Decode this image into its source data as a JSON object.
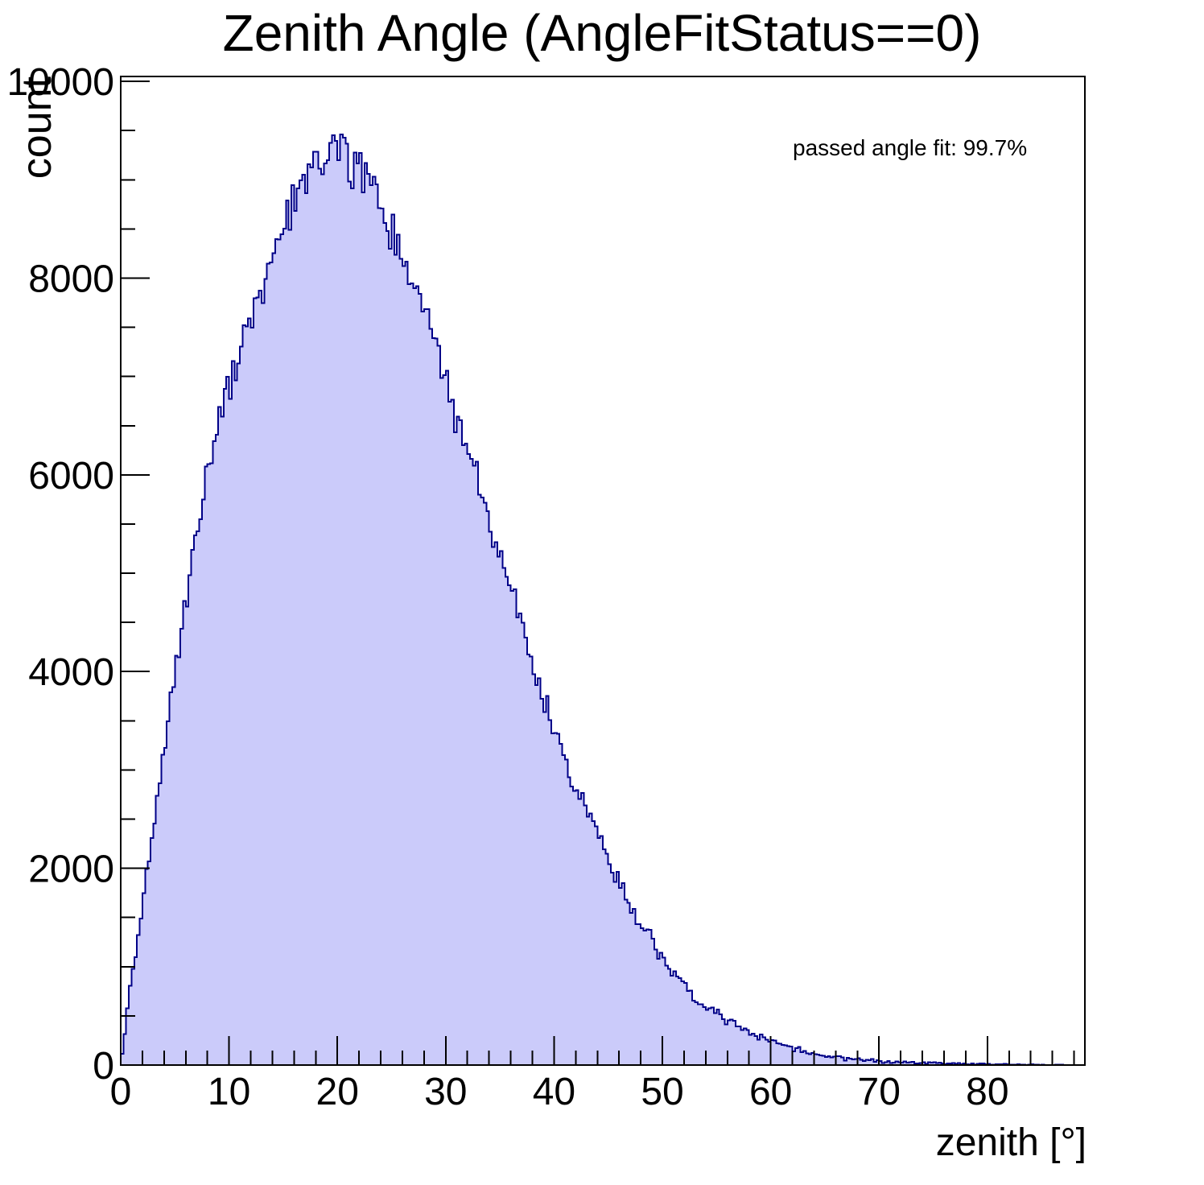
{
  "page": {
    "background_color": "#ffffff"
  },
  "chart_data": {
    "type": "bar",
    "subtype": "histogram-step-filled",
    "title": "Zenith Angle (AngleFitStatus==0)",
    "annotation": "passed angle fit: 99.7%",
    "xlabel": "zenith [°]",
    "ylabel": "count",
    "xlim": [
      0,
      89
    ],
    "ylim": [
      0,
      10050
    ],
    "x_major_ticks": [
      0,
      10,
      20,
      30,
      40,
      50,
      60,
      70,
      80
    ],
    "x_major_tick_labels": [
      "0",
      "10",
      "20",
      "30",
      "40",
      "50",
      "60",
      "70",
      "80"
    ],
    "x_minor_step": 2,
    "y_major_ticks": [
      0,
      2000,
      4000,
      6000,
      8000,
      10000
    ],
    "y_major_tick_labels": [
      "0",
      "2000",
      "4000",
      "6000",
      "8000",
      "10000"
    ],
    "y_minor_step": 500,
    "grid": false,
    "legend": "none",
    "bin_width_deg": 0.25,
    "envelope_x_deg": [
      0,
      1,
      2,
      3,
      4,
      5,
      6,
      7,
      8,
      9,
      10,
      11,
      12,
      13,
      14,
      15,
      16,
      17,
      18,
      19,
      20,
      21,
      22,
      23,
      24,
      25,
      26,
      27,
      28,
      29,
      30,
      31,
      32,
      33,
      34,
      35,
      36,
      37,
      38,
      39,
      40,
      41,
      42,
      43,
      44,
      45,
      46,
      47,
      48,
      49,
      50,
      51,
      52,
      53,
      54,
      55,
      56,
      57,
      58,
      59,
      60,
      61,
      62,
      63,
      64,
      65,
      66,
      67,
      68,
      69,
      70,
      71,
      72,
      73,
      74,
      75,
      76,
      77,
      78,
      79,
      80,
      81,
      82,
      83,
      84,
      85,
      86,
      87,
      88
    ],
    "envelope_counts": [
      0,
      870,
      1580,
      2400,
      3250,
      3950,
      4700,
      5400,
      6050,
      6600,
      6950,
      7250,
      7600,
      7950,
      8250,
      8500,
      8750,
      8950,
      9150,
      9200,
      9250,
      9150,
      9100,
      8950,
      8700,
      8450,
      8200,
      7950,
      7750,
      7400,
      7000,
      6600,
      6250,
      5900,
      5550,
      5200,
      4850,
      4450,
      4100,
      3750,
      3450,
      3130,
      2840,
      2590,
      2350,
      2100,
      1880,
      1620,
      1400,
      1270,
      1080,
      920,
      790,
      670,
      600,
      530,
      460,
      395,
      345,
      295,
      255,
      215,
      175,
      145,
      120,
      98,
      82,
      68,
      57,
      48,
      41,
      36,
      32,
      28,
      25,
      21,
      18,
      15,
      13,
      11,
      9,
      8,
      6,
      5,
      4,
      3,
      2,
      1,
      0
    ],
    "peak_count_approx": 9540,
    "peak_deg_approx": 18,
    "noise_sigma_scale": 3.0,
    "style": {
      "fill_color": "#cbcbfa",
      "line_color": "#000088",
      "frame_color": "#000000",
      "text_color": "#000000"
    }
  }
}
